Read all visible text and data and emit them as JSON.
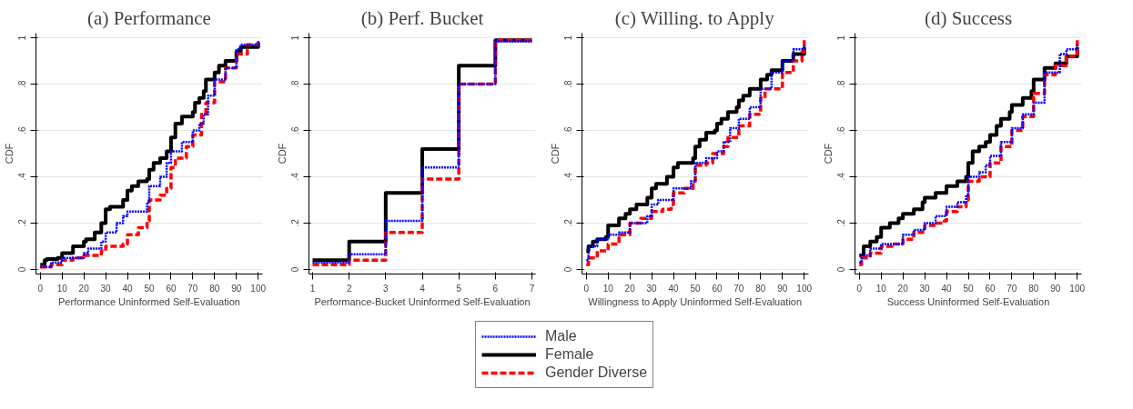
{
  "chart_data": [
    {
      "type": "step",
      "title": "(a) Performance",
      "xlabel": "Performance Uninformed Self-Evaluation",
      "ylabel": "CDF",
      "xlim": [
        -2,
        102
      ],
      "ylim": [
        -0.02,
        1.02
      ],
      "xticks": [
        0,
        10,
        20,
        30,
        40,
        50,
        60,
        70,
        80,
        90,
        100
      ],
      "yticks": [
        {
          "value": 0,
          "label": "0"
        },
        {
          "value": 0.2,
          "label": ".2"
        },
        {
          "value": 0.4,
          "label": ".4"
        },
        {
          "value": 0.6,
          "label": ".6"
        },
        {
          "value": 0.8,
          "label": ".8"
        },
        {
          "value": 1,
          "label": "1"
        }
      ],
      "grid": "y",
      "legend": "bottom",
      "series": [
        {
          "name": "Male",
          "color": "#0000ff",
          "line_style": "dotted",
          "x": [
            0,
            5,
            10,
            20,
            22,
            28,
            30,
            35,
            38,
            40,
            49,
            50,
            55,
            58,
            60,
            65,
            70,
            73,
            75,
            77,
            80,
            85,
            90,
            92,
            100
          ],
          "values": [
            0.01,
            0.03,
            0.05,
            0.07,
            0.09,
            0.12,
            0.16,
            0.2,
            0.23,
            0.25,
            0.29,
            0.36,
            0.4,
            0.46,
            0.51,
            0.55,
            0.6,
            0.63,
            0.67,
            0.75,
            0.82,
            0.87,
            0.95,
            0.97,
            0.99
          ]
        },
        {
          "name": "Female",
          "color": "#000000",
          "line_style": "solid",
          "x": [
            0,
            2,
            3,
            8,
            10,
            15,
            20,
            21,
            25,
            28,
            30,
            32,
            38,
            40,
            42,
            45,
            49,
            50,
            52,
            55,
            58,
            60,
            62,
            65,
            70,
            71,
            73,
            75,
            76,
            80,
            82,
            85,
            90,
            92,
            100
          ],
          "values": [
            0.02,
            0.04,
            0.045,
            0.05,
            0.07,
            0.1,
            0.12,
            0.13,
            0.16,
            0.2,
            0.26,
            0.27,
            0.3,
            0.34,
            0.36,
            0.38,
            0.39,
            0.43,
            0.46,
            0.48,
            0.51,
            0.57,
            0.63,
            0.66,
            0.68,
            0.72,
            0.74,
            0.77,
            0.82,
            0.85,
            0.88,
            0.9,
            0.94,
            0.96,
            0.98
          ]
        },
        {
          "name": "Gender Diverse",
          "color": "#ff0000",
          "line_style": "dashed",
          "x": [
            0,
            5,
            10,
            15,
            20,
            28,
            30,
            38,
            40,
            45,
            49,
            50,
            55,
            58,
            60,
            62,
            67,
            70,
            74,
            76,
            80,
            85,
            90,
            95,
            100
          ],
          "values": [
            0.01,
            0.02,
            0.04,
            0.05,
            0.06,
            0.08,
            0.1,
            0.11,
            0.15,
            0.18,
            0.21,
            0.3,
            0.32,
            0.35,
            0.44,
            0.48,
            0.53,
            0.58,
            0.67,
            0.72,
            0.81,
            0.87,
            0.93,
            0.97,
            0.99
          ]
        }
      ]
    },
    {
      "type": "step",
      "title": "(b) Perf. Bucket",
      "xlabel": "Performance-Bucket Uninformed Self-Evaluation",
      "ylabel": "CDF",
      "xlim": [
        0.9,
        7.1
      ],
      "ylim": [
        -0.02,
        1.02
      ],
      "xticks": [
        1,
        2,
        3,
        4,
        5,
        6,
        7
      ],
      "yticks": [
        {
          "value": 0,
          "label": "0"
        },
        {
          "value": 0.2,
          "label": ".2"
        },
        {
          "value": 0.4,
          "label": ".4"
        },
        {
          "value": 0.6,
          "label": ".6"
        },
        {
          "value": 0.8,
          "label": ".8"
        },
        {
          "value": 1,
          "label": "1"
        }
      ],
      "grid": "y",
      "series": [
        {
          "color": "#0000ff",
          "line_style": "dotted",
          "x": [
            1,
            2,
            3,
            4,
            5,
            6,
            7
          ],
          "values": [
            0.03,
            0.065,
            0.21,
            0.44,
            0.8,
            0.985,
            0.985
          ]
        },
        {
          "color": "#000000",
          "line_style": "solid",
          "x": [
            1,
            2,
            3,
            4,
            5,
            6,
            7
          ],
          "values": [
            0.04,
            0.12,
            0.33,
            0.52,
            0.88,
            0.99,
            0.99
          ]
        },
        {
          "color": "#ff0000",
          "line_style": "dashed",
          "x": [
            1,
            2,
            3,
            4,
            5,
            6,
            7
          ],
          "values": [
            0.02,
            0.04,
            0.16,
            0.39,
            0.8,
            0.99,
            0.995
          ]
        }
      ]
    },
    {
      "type": "step",
      "title": "(c) Willing. to Apply",
      "xlabel": "Willingness to Apply Uninformed Self-Evaluation",
      "ylabel": "CDF",
      "xlim": [
        -2,
        102
      ],
      "ylim": [
        -0.02,
        1.02
      ],
      "xticks": [
        0,
        10,
        20,
        30,
        40,
        50,
        60,
        70,
        80,
        90,
        100
      ],
      "yticks": [
        {
          "value": 0,
          "label": "0"
        },
        {
          "value": 0.2,
          "label": ".2"
        },
        {
          "value": 0.4,
          "label": ".4"
        },
        {
          "value": 0.6,
          "label": ".6"
        },
        {
          "value": 0.8,
          "label": ".8"
        },
        {
          "value": 1,
          "label": "1"
        }
      ],
      "grid": "y",
      "series": [
        {
          "color": "#0000ff",
          "line_style": "dotted",
          "x": [
            0,
            1,
            5,
            10,
            15,
            20,
            28,
            30,
            33,
            40,
            48,
            50,
            55,
            60,
            63,
            66,
            70,
            75,
            80,
            85,
            90,
            95,
            100
          ],
          "values": [
            0.04,
            0.1,
            0.13,
            0.15,
            0.16,
            0.2,
            0.23,
            0.28,
            0.3,
            0.35,
            0.38,
            0.46,
            0.48,
            0.51,
            0.55,
            0.61,
            0.65,
            0.7,
            0.78,
            0.85,
            0.9,
            0.95,
            0.97
          ]
        },
        {
          "color": "#000000",
          "line_style": "solid",
          "x": [
            0,
            1,
            3,
            5,
            9,
            10,
            15,
            18,
            20,
            23,
            28,
            30,
            32,
            37,
            40,
            42,
            49,
            50,
            52,
            55,
            59,
            60,
            62,
            65,
            69,
            70,
            72,
            75,
            80,
            83,
            85,
            90,
            95,
            100
          ],
          "values": [
            0.08,
            0.1,
            0.12,
            0.13,
            0.14,
            0.19,
            0.22,
            0.24,
            0.26,
            0.28,
            0.31,
            0.35,
            0.37,
            0.4,
            0.44,
            0.46,
            0.48,
            0.53,
            0.56,
            0.59,
            0.6,
            0.63,
            0.65,
            0.68,
            0.7,
            0.73,
            0.75,
            0.78,
            0.82,
            0.84,
            0.86,
            0.9,
            0.93,
            0.96
          ]
        },
        {
          "color": "#ff0000",
          "line_style": "dashed",
          "x": [
            0,
            1,
            5,
            10,
            15,
            20,
            25,
            30,
            35,
            39,
            40,
            45,
            49,
            50,
            55,
            58,
            63,
            65,
            70,
            75,
            80,
            82,
            90,
            95,
            99,
            100
          ],
          "values": [
            0.02,
            0.05,
            0.08,
            0.11,
            0.15,
            0.2,
            0.22,
            0.25,
            0.26,
            0.28,
            0.33,
            0.35,
            0.38,
            0.45,
            0.46,
            0.5,
            0.53,
            0.57,
            0.62,
            0.67,
            0.74,
            0.78,
            0.85,
            0.9,
            0.94,
            0.99
          ]
        }
      ]
    },
    {
      "type": "step",
      "title": "(d) Success",
      "xlabel": "Success Uninformed Self-Evaluation",
      "ylabel": "CDF",
      "xlim": [
        -2,
        102
      ],
      "ylim": [
        -0.02,
        1.02
      ],
      "xticks": [
        0,
        10,
        20,
        30,
        40,
        50,
        60,
        70,
        80,
        90,
        100
      ],
      "yticks": [
        {
          "value": 0,
          "label": "0"
        },
        {
          "value": 0.2,
          "label": ".2"
        },
        {
          "value": 0.4,
          "label": ".4"
        },
        {
          "value": 0.6,
          "label": ".6"
        },
        {
          "value": 0.8,
          "label": ".8"
        },
        {
          "value": 1,
          "label": "1"
        }
      ],
      "grid": "y",
      "series": [
        {
          "color": "#0000ff",
          "line_style": "dotted",
          "x": [
            0,
            1,
            5,
            10,
            20,
            25,
            30,
            35,
            40,
            45,
            49,
            50,
            55,
            58,
            60,
            65,
            70,
            75,
            80,
            85,
            92,
            95,
            100
          ],
          "values": [
            0.03,
            0.06,
            0.09,
            0.11,
            0.15,
            0.17,
            0.2,
            0.23,
            0.27,
            0.29,
            0.32,
            0.4,
            0.42,
            0.45,
            0.49,
            0.55,
            0.61,
            0.67,
            0.72,
            0.85,
            0.93,
            0.95,
            0.97
          ]
        },
        {
          "color": "#000000",
          "line_style": "solid",
          "x": [
            0,
            2,
            5,
            8,
            10,
            14,
            18,
            20,
            25,
            29,
            30,
            35,
            40,
            45,
            49,
            50,
            52,
            55,
            58,
            60,
            63,
            65,
            69,
            70,
            75,
            79,
            80,
            85,
            90,
            95,
            100
          ],
          "values": [
            0.06,
            0.1,
            0.12,
            0.14,
            0.18,
            0.2,
            0.22,
            0.24,
            0.26,
            0.29,
            0.31,
            0.33,
            0.36,
            0.38,
            0.4,
            0.46,
            0.51,
            0.53,
            0.55,
            0.58,
            0.62,
            0.65,
            0.68,
            0.71,
            0.74,
            0.77,
            0.82,
            0.87,
            0.89,
            0.92,
            0.96
          ]
        },
        {
          "color": "#ff0000",
          "line_style": "dashed",
          "x": [
            0,
            1,
            5,
            10,
            15,
            20,
            25,
            30,
            35,
            39,
            40,
            45,
            49,
            50,
            55,
            60,
            65,
            70,
            75,
            80,
            85,
            90,
            95,
            100
          ],
          "values": [
            0.02,
            0.05,
            0.07,
            0.1,
            0.11,
            0.13,
            0.16,
            0.19,
            0.2,
            0.21,
            0.25,
            0.27,
            0.3,
            0.38,
            0.4,
            0.46,
            0.53,
            0.6,
            0.66,
            0.76,
            0.84,
            0.88,
            0.92,
            0.99
          ]
        }
      ]
    }
  ]
}
